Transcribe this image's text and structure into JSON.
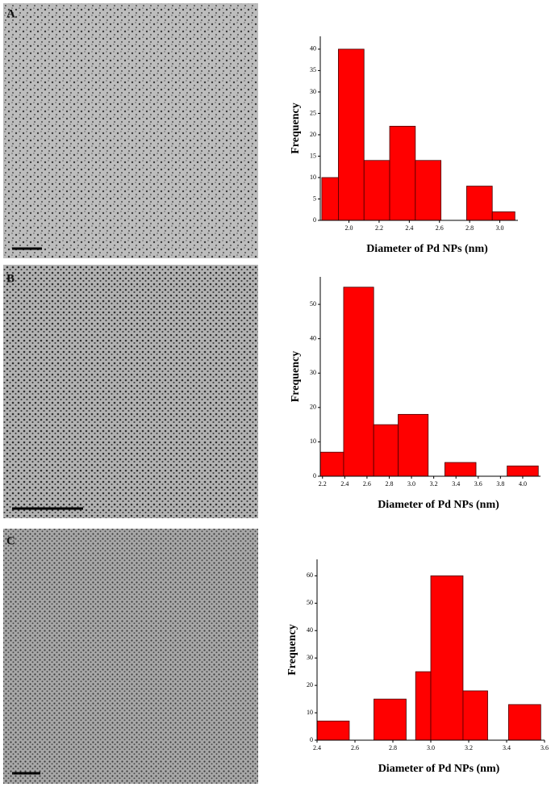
{
  "panel_labels": [
    "A",
    "B",
    "C"
  ],
  "chart_data": [
    {
      "type": "histogram",
      "xlabel": "Diameter of Pd NPs (nm)",
      "ylabel": "Frequency",
      "color": "#ff0000",
      "bins": [
        1.82,
        1.93,
        2.1,
        2.27,
        2.44,
        2.61,
        2.78,
        2.95,
        3.1
      ],
      "values": [
        10,
        40,
        14,
        22,
        14,
        0,
        8,
        2
      ],
      "xlim": [
        1.81,
        3.12
      ],
      "ylim": [
        0,
        43
      ],
      "xticks": [
        {
          "value": 2,
          "label": "2.0"
        },
        {
          "value": 2.2,
          "label": "2.2"
        },
        {
          "value": 2.4,
          "label": "2.4"
        },
        {
          "value": 2.6,
          "label": "2.6"
        },
        {
          "value": 2.8,
          "label": "2.8"
        },
        {
          "value": 3,
          "label": "3.0"
        }
      ],
      "yticks": [
        0,
        5,
        10,
        15,
        20,
        25,
        30,
        35,
        40
      ]
    },
    {
      "type": "histogram",
      "xlabel": "Diameter of Pd NPs (nm)",
      "ylabel": "Frequency",
      "color": "#ff0000",
      "bins": [
        2.18,
        2.39,
        2.66,
        2.88,
        3.15,
        3.3,
        3.58,
        3.86,
        4.14
      ],
      "values": [
        7,
        55,
        15,
        18,
        0,
        4,
        0,
        3
      ],
      "xlim": [
        2.18,
        4.16
      ],
      "ylim": [
        0,
        58
      ],
      "xticks": [
        {
          "value": 2.2,
          "label": "2.2"
        },
        {
          "value": 2.4,
          "label": "2.4"
        },
        {
          "value": 2.6,
          "label": "2.6"
        },
        {
          "value": 2.8,
          "label": "2.8"
        },
        {
          "value": 3,
          "label": "3.0"
        },
        {
          "value": 3.2,
          "label": "3.2"
        },
        {
          "value": 3.4,
          "label": "3.4"
        },
        {
          "value": 3.6,
          "label": "3.6"
        },
        {
          "value": 3.8,
          "label": "3.8"
        },
        {
          "value": 4,
          "label": "4.0"
        }
      ],
      "yticks": [
        0,
        10,
        20,
        30,
        40,
        50
      ]
    },
    {
      "type": "histogram",
      "xlabel": "Diameter of Pd NPs (nm)",
      "ylabel": "Frequency",
      "color": "#ff0000",
      "bins": [
        2.4,
        2.57,
        2.7,
        2.87,
        2.92,
        3.0,
        3.17,
        3.3,
        3.41,
        3.58
      ],
      "values": [
        7,
        0,
        15,
        0,
        25,
        60,
        18,
        0,
        13
      ],
      "xlim": [
        2.4,
        3.6
      ],
      "ylim": [
        0,
        66
      ],
      "xticks": [
        {
          "value": 2.4,
          "label": "2.4"
        },
        {
          "value": 2.6,
          "label": "2.6"
        },
        {
          "value": 2.8,
          "label": "2.8"
        },
        {
          "value": 3,
          "label": "3.0"
        },
        {
          "value": 3.2,
          "label": "3.2"
        },
        {
          "value": 3.4,
          "label": "3.4"
        },
        {
          "value": 3.6,
          "label": "3.6"
        }
      ],
      "yticks": [
        0,
        10,
        20,
        30,
        40,
        50,
        60
      ]
    }
  ]
}
